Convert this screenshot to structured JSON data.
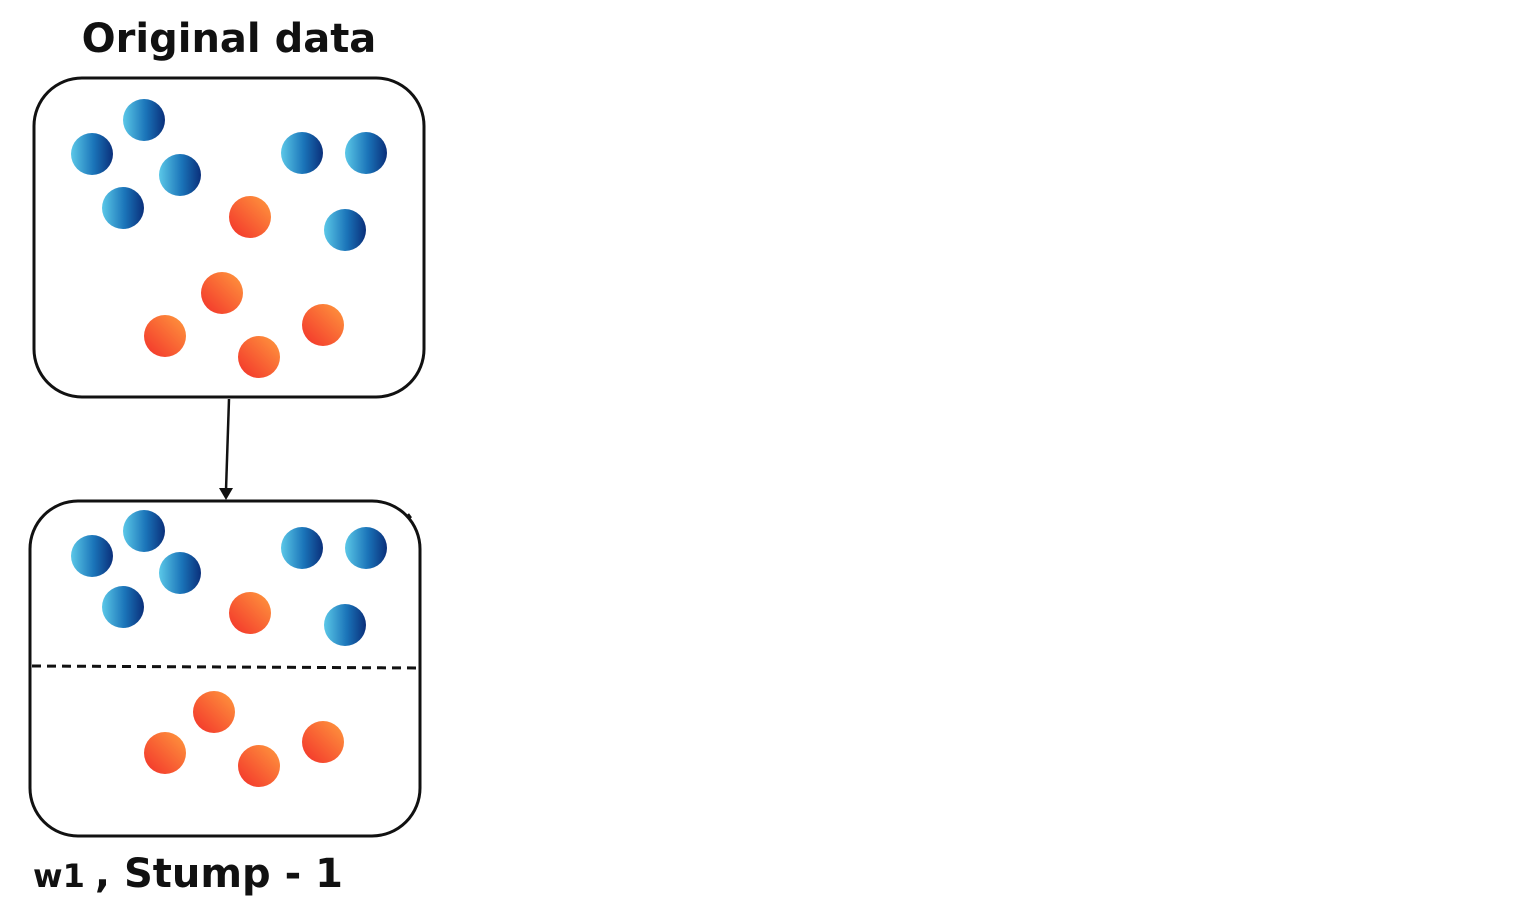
{
  "diagram": {
    "title": "Original data",
    "caption_weight": "w1",
    "caption_rest": ", Stump - 1",
    "colors": {
      "blue_light": "#5bc8e8",
      "blue_dark": "#0b3f8f",
      "red_light": "#ff8a3c",
      "red_dark": "#f23a2c",
      "stroke": "#111111"
    },
    "legend_classes": [
      "blue-point",
      "red-point"
    ]
  }
}
